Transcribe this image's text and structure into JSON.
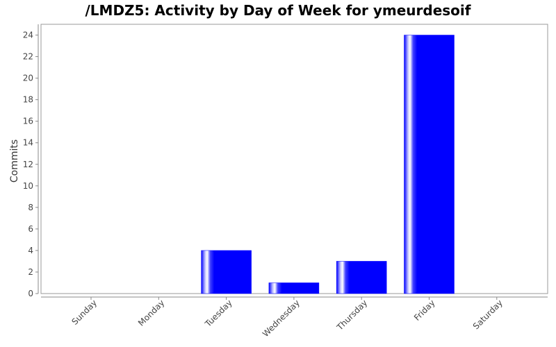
{
  "chart_data": {
    "type": "bar",
    "title": "/LMDZ5: Activity by Day of Week for ymeurdesoif",
    "xlabel": "",
    "ylabel": "Commits",
    "categories": [
      "Sunday",
      "Monday",
      "Tuesday",
      "Wednesday",
      "Thursday",
      "Friday",
      "Saturday"
    ],
    "values": [
      0,
      0,
      4,
      1,
      3,
      24,
      0
    ],
    "ylim": [
      0,
      25
    ],
    "yticks": [
      0,
      2,
      4,
      6,
      8,
      10,
      12,
      14,
      16,
      18,
      20,
      22,
      24
    ],
    "grid": false,
    "legend": "none",
    "colors": {
      "bar": "#0000ff",
      "bar_highlight": "#ffffff",
      "plot_border": "#999999",
      "axis_line": "#888888",
      "background": "#ffffff"
    }
  }
}
